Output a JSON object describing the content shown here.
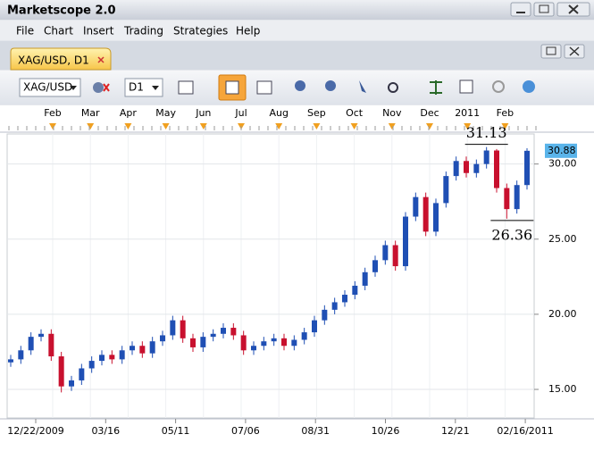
{
  "window": {
    "title": "Marketscope 2.0"
  },
  "menu": [
    "File",
    "Chart",
    "Insert",
    "Trading",
    "Strategies",
    "Help"
  ],
  "tab": "XAG/USD, D1",
  "toolbar": {
    "symbol": "XAG/USD",
    "timeframe": "D1"
  },
  "chart_data": {
    "type": "candlestick",
    "x_top_labels": [
      "Feb",
      "Mar",
      "Apr",
      "May",
      "Jun",
      "Jul",
      "Aug",
      "Sep",
      "Oct",
      "Nov",
      "Dec",
      "2011",
      "Feb"
    ],
    "x_labels": [
      "12/22/2009",
      "03/16",
      "05/11",
      "07/06",
      "08/31",
      "10/26",
      "12/21",
      "02/16/2011"
    ],
    "open": [
      16.8,
      17.0,
      17.6,
      18.5,
      18.7,
      17.2,
      15.2,
      15.6,
      16.4,
      16.9,
      17.3,
      17.0,
      17.6,
      17.9,
      17.4,
      18.2,
      18.6,
      19.6,
      18.4,
      17.8,
      18.5,
      18.7,
      19.1,
      18.6,
      17.6,
      17.9,
      18.2,
      18.4,
      17.9,
      18.3,
      18.8,
      19.6,
      20.3,
      20.8,
      21.3,
      21.9,
      22.8,
      23.6,
      24.6,
      23.2,
      26.5,
      27.8,
      25.5,
      27.4,
      29.2,
      30.2,
      29.4,
      30.0,
      30.9,
      28.4,
      27.0,
      28.6
    ],
    "high": [
      17.3,
      17.9,
      18.8,
      19.0,
      19.0,
      17.5,
      15.9,
      16.7,
      17.2,
      17.6,
      17.6,
      17.9,
      18.2,
      18.2,
      18.5,
      18.9,
      19.9,
      19.9,
      18.7,
      18.8,
      19.0,
      19.4,
      19.4,
      18.9,
      18.2,
      18.5,
      18.7,
      18.7,
      18.6,
      19.1,
      19.9,
      20.6,
      21.1,
      21.6,
      22.2,
      23.1,
      23.9,
      24.9,
      24.9,
      26.8,
      28.1,
      28.1,
      27.7,
      29.5,
      30.5,
      30.5,
      30.3,
      31.13,
      31.0,
      28.7,
      28.9,
      31.05
    ],
    "low": [
      16.5,
      16.7,
      17.3,
      18.2,
      16.9,
      14.8,
      14.9,
      15.3,
      16.1,
      16.6,
      16.7,
      16.7,
      17.3,
      17.1,
      17.1,
      17.9,
      18.3,
      18.1,
      17.5,
      17.5,
      18.2,
      18.4,
      18.3,
      17.3,
      17.3,
      17.6,
      17.9,
      17.6,
      17.6,
      18.0,
      18.5,
      19.3,
      20.0,
      20.5,
      21.0,
      21.6,
      22.5,
      23.3,
      22.9,
      22.9,
      26.2,
      25.2,
      25.2,
      27.1,
      28.9,
      29.1,
      29.1,
      29.7,
      28.1,
      26.36,
      26.7,
      28.3
    ],
    "close": [
      17.0,
      17.6,
      18.5,
      18.7,
      17.2,
      15.2,
      15.6,
      16.4,
      16.9,
      17.3,
      17.0,
      17.6,
      17.9,
      17.4,
      18.2,
      18.6,
      19.6,
      18.4,
      17.8,
      18.5,
      18.7,
      19.1,
      18.6,
      17.6,
      17.9,
      18.2,
      18.4,
      17.9,
      18.3,
      18.8,
      19.6,
      20.3,
      20.8,
      21.3,
      21.9,
      22.8,
      23.6,
      24.6,
      23.2,
      26.5,
      27.8,
      25.5,
      27.4,
      29.2,
      30.2,
      29.4,
      30.0,
      30.9,
      28.4,
      27.0,
      28.6,
      30.88
    ],
    "up_color": "#1f4fb4",
    "down_color": "#c8102e",
    "ylim": [
      13.1,
      32.0
    ],
    "yticks": [
      {
        "value": 15,
        "label": "15.00"
      },
      {
        "value": 20,
        "label": "20.00"
      },
      {
        "value": 25,
        "label": "25.00"
      },
      {
        "value": 30,
        "label": "30.00"
      }
    ],
    "grid": true,
    "annotations": [
      31.13,
      26.36
    ],
    "last_price": 30.88
  }
}
